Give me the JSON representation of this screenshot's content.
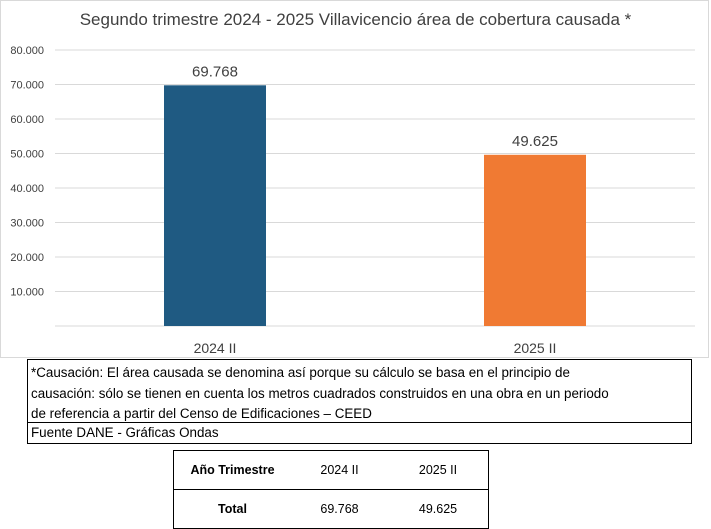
{
  "chart_data": {
    "type": "bar",
    "title": "Segundo trimestre 2024 - 2025 Villavicencio área de cobertura causada *",
    "categories": [
      "2024 II",
      "2025 II"
    ],
    "values": [
      69768,
      49625
    ],
    "value_labels": [
      "69.768",
      "49.625"
    ],
    "colors": [
      "#1f5a82",
      "#f07a33"
    ],
    "ylim": [
      0,
      80000
    ],
    "yticks": [
      10000,
      20000,
      30000,
      40000,
      50000,
      60000,
      70000,
      80000
    ],
    "ytick_labels": [
      "10.000",
      "20.000",
      "30.000",
      "40.000",
      "50.000",
      "60.000",
      "70.000",
      "80.000"
    ],
    "grid": true,
    "legend": "none"
  },
  "note": {
    "line1": "*Causación: El área causada se denomina así porque su cálculo se basa en el principio de",
    "line2": "causación: sólo se tienen en cuenta los metros cuadrados construidos en una obra en un periodo",
    "line3": "de referencia a partir del Censo de Edificaciones – CEED",
    "source": "Fuente DANE - Gráficas Ondas"
  },
  "table": {
    "header": [
      "Año Trimestre",
      "2024 II",
      "2025 II"
    ],
    "row": [
      "Total",
      "69.768",
      "49.625"
    ]
  }
}
